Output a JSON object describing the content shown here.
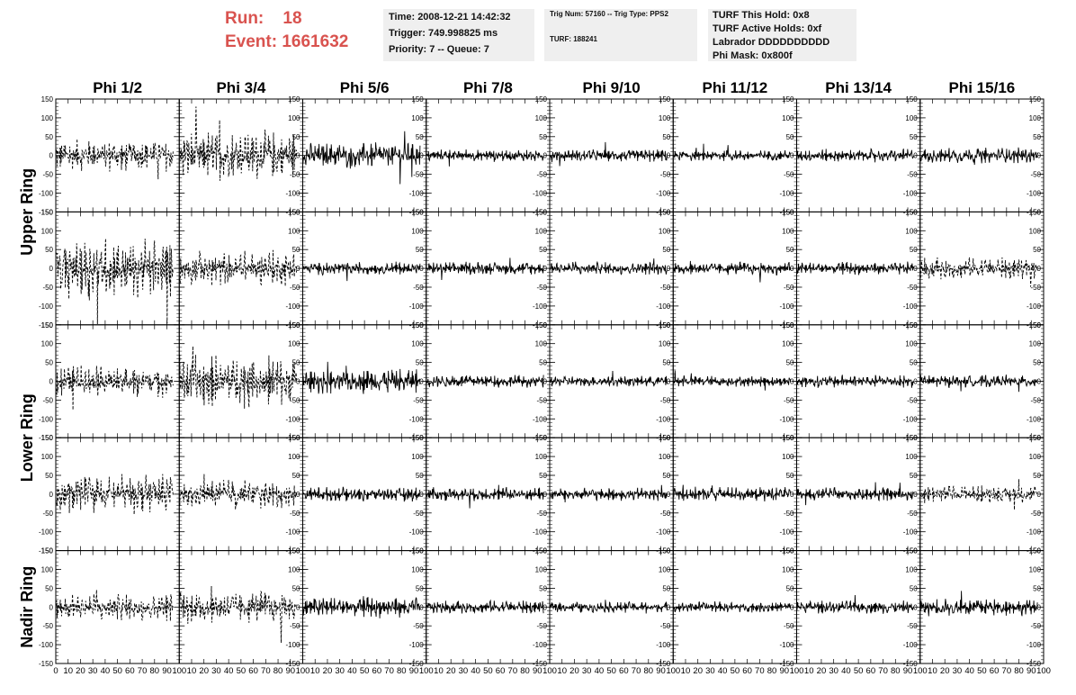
{
  "header": {
    "run_label": "Run:",
    "run_value": "18",
    "event_label": "Event:",
    "event_value": "1661632"
  },
  "info_time": {
    "time": "Time: 2008-12-21 14:42:32",
    "trigger": "Trigger: 749.998825 ms",
    "priority": "Priority: 7 -- Queue: 7"
  },
  "info_trig": {
    "trig": "Trig Num: 57160 -- Trig Type: PPS2",
    "turf": "TURF: 188241"
  },
  "info_turf": {
    "hold": "TURF This Hold: 0x8",
    "active": "TURF Active Holds: 0xf",
    "labrador": "Labrador DDDDDDDDDD",
    "phimask": "Phi Mask: 0x800f"
  },
  "chart_data": {
    "type": "line",
    "columns": [
      "Phi 1/2",
      "Phi 3/4",
      "Phi 5/6",
      "Phi 7/8",
      "Phi 9/10",
      "Phi 11/12",
      "Phi 13/14",
      "Phi 15/16"
    ],
    "row_labels": [
      "Upper Ring",
      "Lower Ring",
      "Nadir Ring"
    ],
    "ylim": [
      -150,
      150
    ],
    "y_ticks": [
      150,
      100,
      50,
      0,
      -50,
      -100,
      -150
    ],
    "xlim": [
      0,
      100
    ],
    "x_ticks": [
      0,
      10,
      20,
      30,
      40,
      50,
      60,
      70,
      80,
      90,
      100
    ],
    "grid": false,
    "panel_rows": 5,
    "panel_cols": 8,
    "trace_samples": 260,
    "trace_x_end": 95,
    "amplitudes": [
      [
        45,
        70,
        35,
        18,
        18,
        15,
        18,
        22
      ],
      [
        85,
        50,
        18,
        18,
        18,
        18,
        18,
        30
      ],
      [
        45,
        75,
        35,
        18,
        15,
        15,
        18,
        18
      ],
      [
        55,
        40,
        20,
        20,
        18,
        20,
        18,
        25
      ],
      [
        40,
        45,
        30,
        18,
        15,
        15,
        18,
        25
      ]
    ],
    "dashed_panels": [
      [
        1,
        1,
        0,
        0,
        0,
        0,
        0,
        0
      ],
      [
        1,
        1,
        0,
        0,
        0,
        0,
        0,
        1
      ],
      [
        1,
        1,
        0,
        0,
        0,
        0,
        0,
        0
      ],
      [
        1,
        1,
        0,
        0,
        0,
        0,
        0,
        1
      ],
      [
        1,
        1,
        0,
        0,
        0,
        0,
        0,
        0
      ]
    ]
  }
}
